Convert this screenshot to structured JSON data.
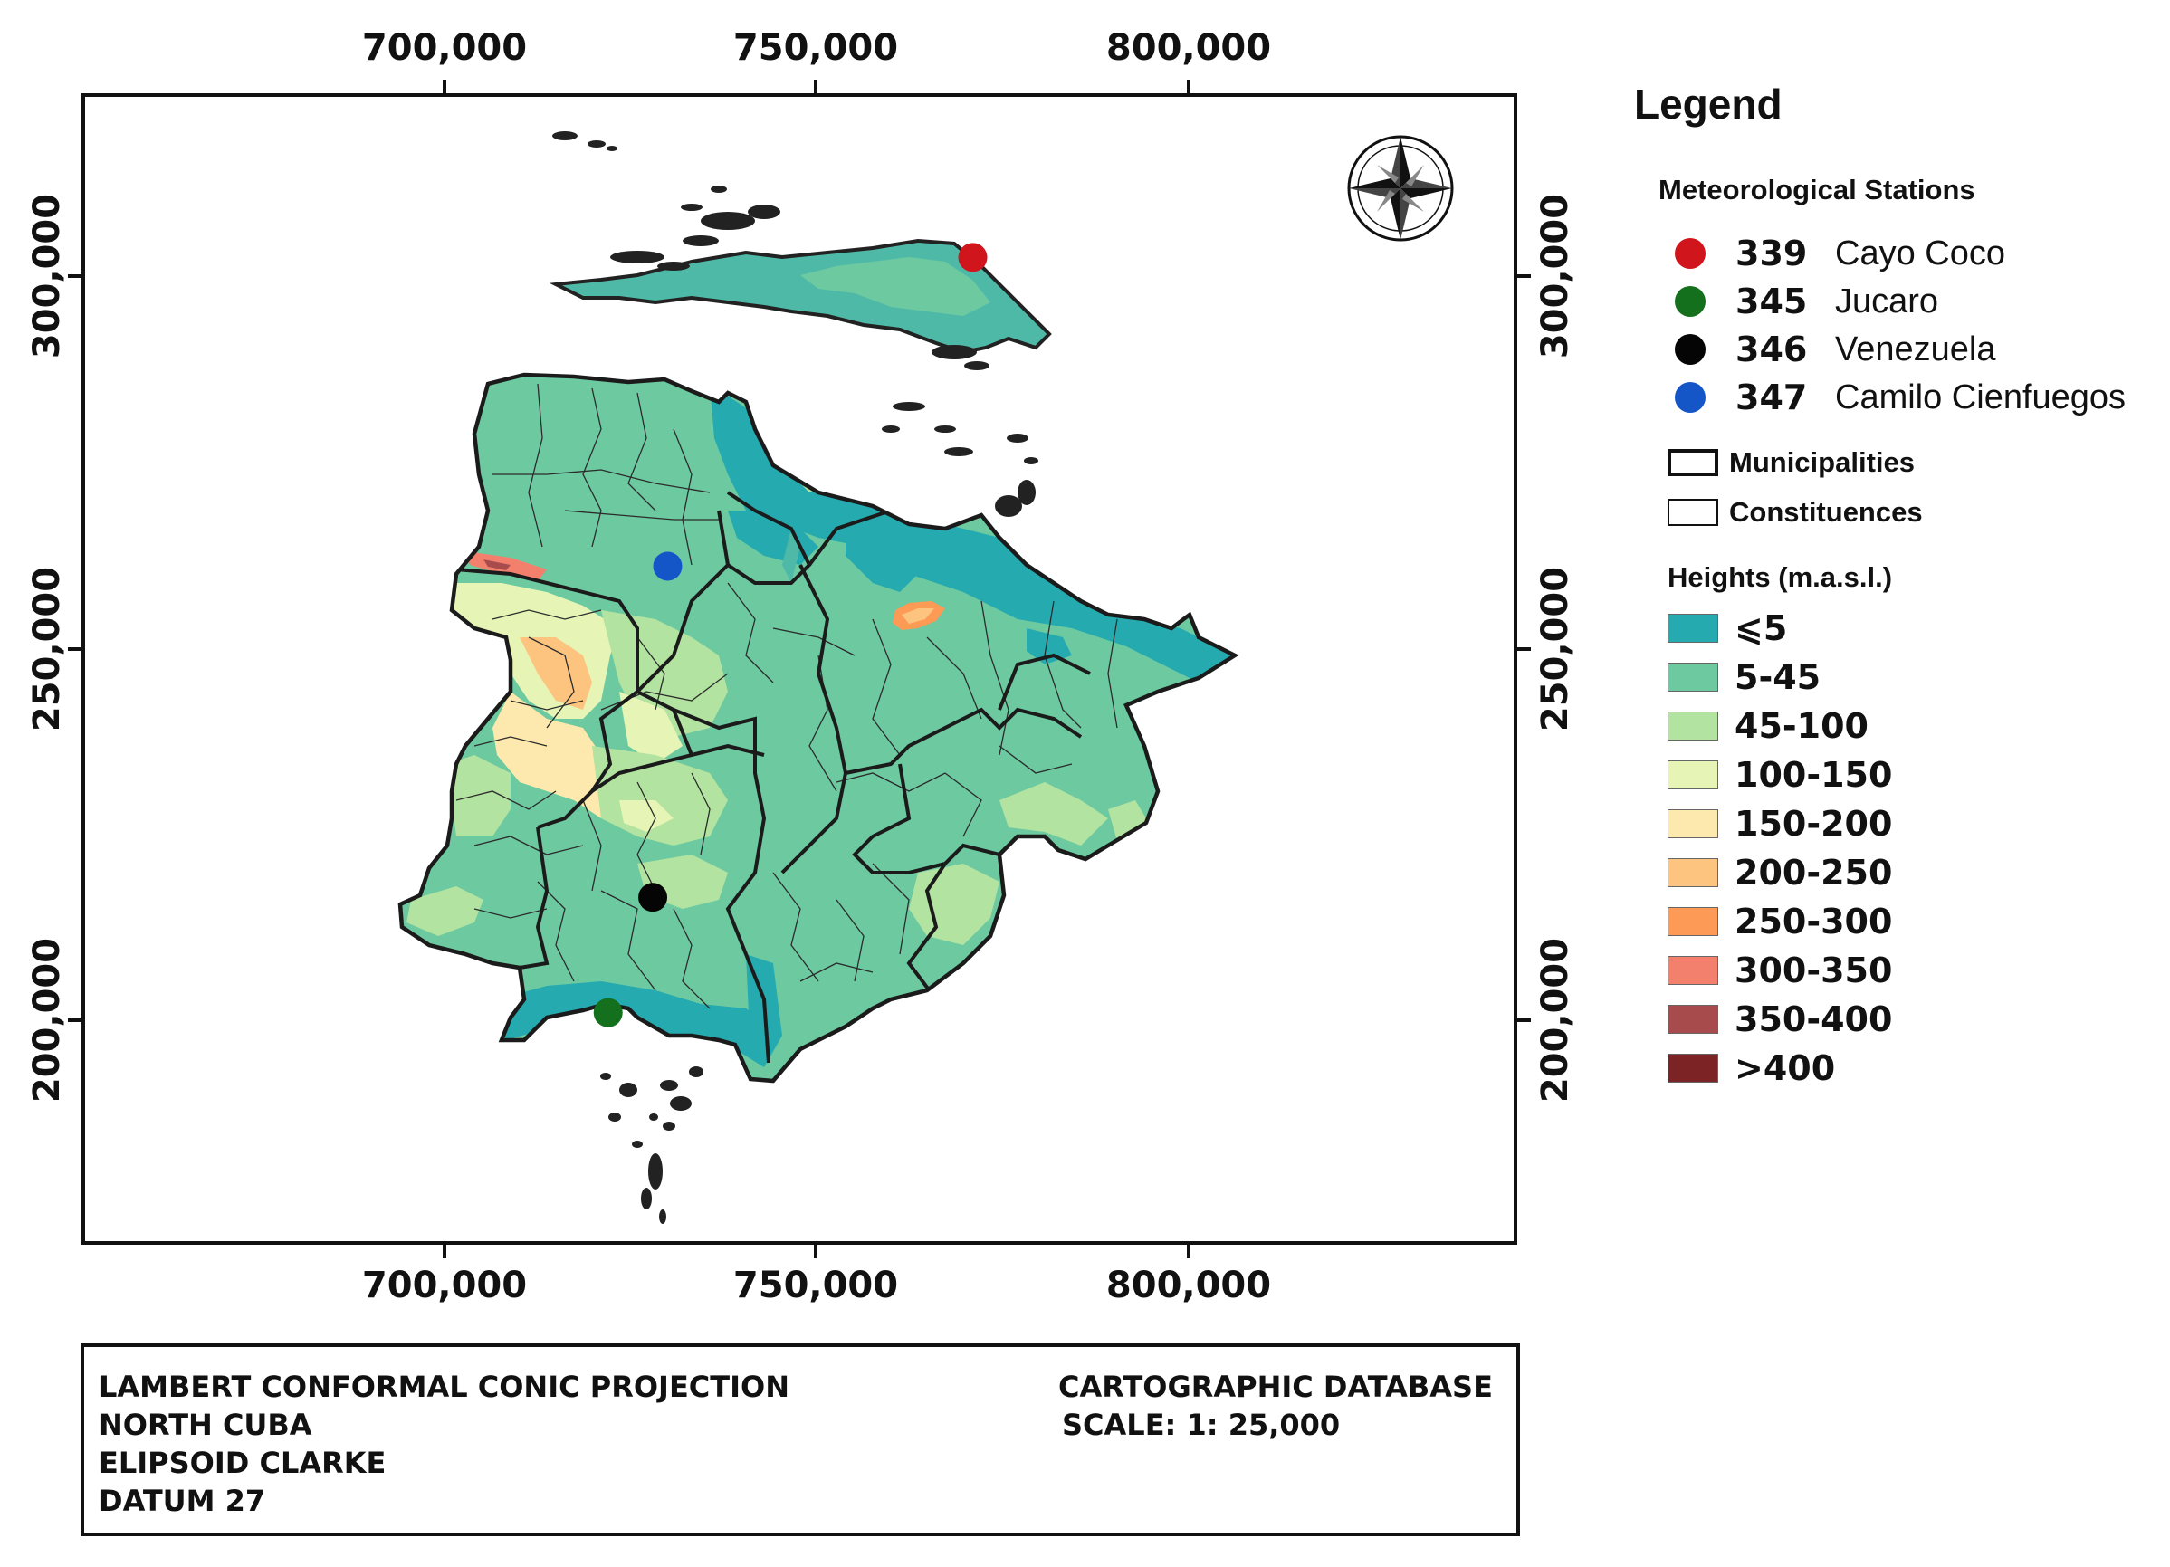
{
  "axes": {
    "x_ticks": [
      "700,000",
      "750,000",
      "800,000"
    ],
    "y_ticks": [
      "300,000",
      "250,000",
      "200,000"
    ]
  },
  "legend": {
    "title": "Legend",
    "stations_title": "Meteorological Stations",
    "stations": [
      {
        "code": "339",
        "name": "Cayo Coco",
        "color": "#d0161c"
      },
      {
        "code": "345",
        "name": "Jucaro",
        "color": "#14701c"
      },
      {
        "code": "346",
        "name": "Venezuela",
        "color": "#050505"
      },
      {
        "code": "347",
        "name": "Camilo Cienfuegos",
        "color": "#1455c8"
      }
    ],
    "boundaries": [
      {
        "label": "Municipalities",
        "style": "thick"
      },
      {
        "label": "Constituences",
        "style": "thin"
      }
    ],
    "heights_title": "Heights (m.a.s.l.)",
    "heights": [
      {
        "label": "⩽5",
        "color": "#25aab0"
      },
      {
        "label": "5-45",
        "color": "#6cc9a0"
      },
      {
        "label": "45-100",
        "color": "#b3e3a0"
      },
      {
        "label": "100-150",
        "color": "#e6f4b6"
      },
      {
        "label": "150-200",
        "color": "#fde9ad"
      },
      {
        "label": "200-250",
        "color": "#fdc47f"
      },
      {
        "label": "250-300",
        "color": "#fd9a55"
      },
      {
        "label": "300-350",
        "color": "#f2806c"
      },
      {
        "label": "350-400",
        "color": "#a84b4c"
      },
      {
        "label": ">400",
        "color": "#7c2326"
      }
    ]
  },
  "info": {
    "projection": "LAMBERT CONFORMAL CONIC PROJECTION",
    "region": "NORTH CUBA",
    "ellipsoid": "ELIPSOID CLARKE",
    "datum": "DATUM 27",
    "database": "CARTOGRAPHIC DATABASE",
    "scale": "SCALE: 1: 25,000"
  },
  "map": {
    "north_arrow": "compass-rose",
    "stations_on_map": [
      {
        "code": "339",
        "x": 770500,
        "y": 303000
      },
      {
        "code": "347",
        "x": 729500,
        "y": 261500
      },
      {
        "code": "346",
        "x": 727500,
        "y": 217000
      },
      {
        "code": "345",
        "x": 721500,
        "y": 201500
      }
    ]
  }
}
